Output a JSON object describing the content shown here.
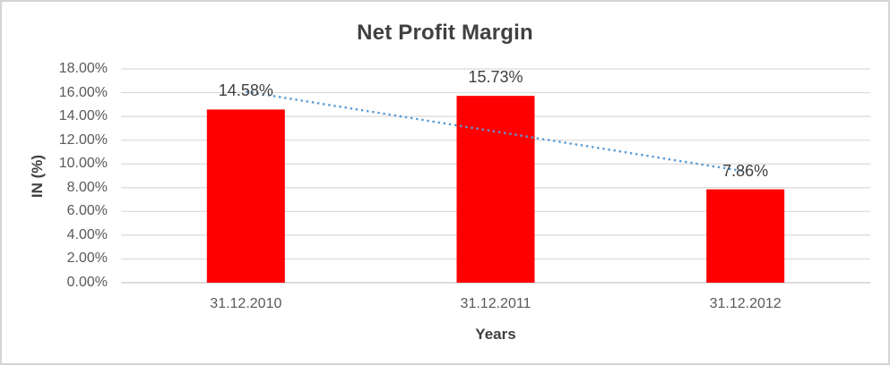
{
  "window": {
    "background": "#FFFFFF",
    "border_color": "#D4D4D4"
  },
  "chart_data": {
    "type": "bar",
    "title": "Net Profit Margin",
    "xlabel": "Years",
    "ylabel": "IN (%)",
    "categories": [
      "31.12.2010",
      "31.12.2011",
      "31.12.2012"
    ],
    "values": [
      14.58,
      15.73,
      7.86
    ],
    "data_labels": [
      "14.58%",
      "15.73%",
      "7.86%"
    ],
    "y_tick_labels": [
      "18.00%",
      "16.00%",
      "14.00%",
      "12.00%",
      "10.00%",
      "8.00%",
      "6.00%",
      "4.00%",
      "2.00%",
      "0.00%"
    ],
    "ylim": [
      0,
      18
    ],
    "y_tick_step": 2,
    "grid": true,
    "legend": "none",
    "trendline": {
      "type": "linear",
      "style": "dotted"
    },
    "colors": {
      "bar": "#FF0000",
      "trendline": "#5B9BD5",
      "gridline": "#D9D9D9",
      "axis_line": "#C6C6C6",
      "title_text": "#404040",
      "tick_text": "#595959",
      "label_text": "#404040"
    }
  }
}
